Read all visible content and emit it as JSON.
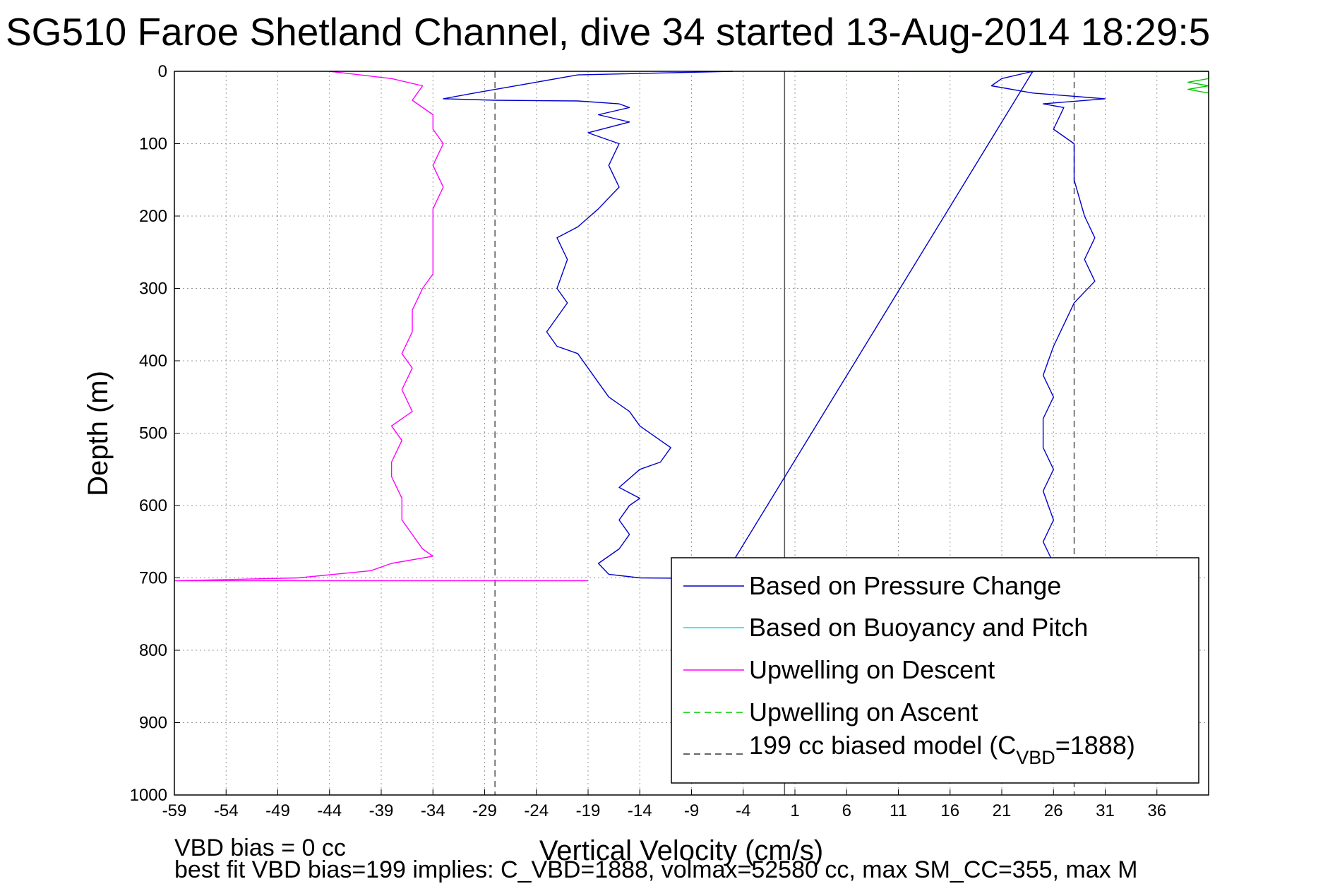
{
  "chart_data": {
    "type": "line",
    "title": "SG510 Faroe Shetland Channel, dive 34 started 13-Aug-2014 18:29:5",
    "xlabel": "Vertical Velocity (cm/s)",
    "ylabel": "Depth (m)",
    "xlim": [
      -59,
      41
    ],
    "ylim": [
      0,
      1000
    ],
    "y_reversed": true,
    "grid": true,
    "xticks": [
      -59,
      -54,
      -49,
      -44,
      -39,
      -34,
      -29,
      -24,
      -19,
      -14,
      -9,
      -4,
      1,
      6,
      11,
      16,
      21,
      26,
      31,
      36
    ],
    "yticks": [
      0,
      100,
      200,
      300,
      400,
      500,
      600,
      700,
      800,
      900,
      1000
    ],
    "legend_position": "bottom-right",
    "footer_lines": [
      "VBD bias = 0 cc",
      "best fit VBD bias=199 implies: C_VBD=1888, volmax=52580 cc, max SM_CC=355, max M"
    ],
    "legend_entries": [
      {
        "label": "Based on Pressure Change",
        "color": "#0000cc",
        "dash": "solid"
      },
      {
        "label": "Based on Buoyancy and Pitch",
        "color": "#00e5e5",
        "dash": "solid"
      },
      {
        "label": "Upwelling on Descent",
        "color": "#ff00ff",
        "dash": "solid"
      },
      {
        "label": "Upwelling on Ascent",
        "color": "#00cc00",
        "dash": "dashed"
      },
      {
        "label_main": "199 cc biased model (C",
        "label_sub": "VBD",
        "label_tail": "=1888)",
        "color": "#333333",
        "dash": "dashed"
      }
    ],
    "series": [
      {
        "name": "Based on Pressure Change",
        "color": "#0000cc",
        "points": [
          [
            -5,
            0
          ],
          [
            -20,
            5
          ],
          [
            -24,
            15
          ],
          [
            -30,
            30
          ],
          [
            -33,
            38
          ],
          [
            -28,
            40
          ],
          [
            -20,
            41
          ],
          [
            -16,
            45
          ],
          [
            -15,
            50
          ],
          [
            -18,
            60
          ],
          [
            -15,
            70
          ],
          [
            -19,
            85
          ],
          [
            -16,
            100
          ],
          [
            -17,
            130
          ],
          [
            -16,
            160
          ],
          [
            -18,
            190
          ],
          [
            -20,
            215
          ],
          [
            -22,
            230
          ],
          [
            -21,
            260
          ],
          [
            -22,
            300
          ],
          [
            -21,
            320
          ],
          [
            -23,
            360
          ],
          [
            -22,
            380
          ],
          [
            -20,
            390
          ],
          [
            -19,
            410
          ],
          [
            -18,
            430
          ],
          [
            -17,
            450
          ],
          [
            -15,
            470
          ],
          [
            -14,
            490
          ],
          [
            -12,
            510
          ],
          [
            -11,
            520
          ],
          [
            -12,
            540
          ],
          [
            -14,
            550
          ],
          [
            -16,
            575
          ],
          [
            -14,
            590
          ],
          [
            -15,
            600
          ],
          [
            -16,
            620
          ],
          [
            -15,
            640
          ],
          [
            -16,
            660
          ],
          [
            -18,
            680
          ],
          [
            -17,
            695
          ],
          [
            -14,
            700
          ],
          [
            -6,
            701
          ],
          [
            24,
            0
          ],
          [
            21,
            10
          ],
          [
            20,
            20
          ],
          [
            24,
            30
          ],
          [
            31,
            38
          ],
          [
            25,
            45
          ],
          [
            27,
            50
          ],
          [
            26,
            80
          ],
          [
            28,
            100
          ],
          [
            28,
            150
          ],
          [
            29,
            200
          ],
          [
            30,
            230
          ],
          [
            29,
            260
          ],
          [
            30,
            290
          ],
          [
            28,
            320
          ],
          [
            27,
            350
          ],
          [
            26,
            380
          ],
          [
            25,
            420
          ],
          [
            26,
            450
          ],
          [
            25,
            480
          ],
          [
            25,
            520
          ],
          [
            26,
            550
          ],
          [
            25,
            580
          ],
          [
            26,
            620
          ],
          [
            25,
            650
          ],
          [
            26,
            680
          ],
          [
            27,
            700
          ]
        ]
      },
      {
        "name": "Upwelling on Descent",
        "color": "#ff00ff",
        "points": [
          [
            -44,
            0
          ],
          [
            -38,
            10
          ],
          [
            -35,
            20
          ],
          [
            -36,
            40
          ],
          [
            -34,
            60
          ],
          [
            -34,
            80
          ],
          [
            -33,
            100
          ],
          [
            -34,
            130
          ],
          [
            -33,
            160
          ],
          [
            -34,
            190
          ],
          [
            -34,
            220
          ],
          [
            -34,
            250
          ],
          [
            -34,
            280
          ],
          [
            -35,
            300
          ],
          [
            -36,
            330
          ],
          [
            -36,
            360
          ],
          [
            -37,
            390
          ],
          [
            -36,
            410
          ],
          [
            -37,
            440
          ],
          [
            -36,
            470
          ],
          [
            -38,
            490
          ],
          [
            -37,
            510
          ],
          [
            -38,
            540
          ],
          [
            -38,
            560
          ],
          [
            -37,
            590
          ],
          [
            -37,
            620
          ],
          [
            -36,
            640
          ],
          [
            -35,
            660
          ],
          [
            -34,
            670
          ],
          [
            -38,
            680
          ],
          [
            -40,
            690
          ],
          [
            -47,
            700
          ],
          [
            -59,
            704
          ],
          [
            -19,
            704
          ]
        ]
      },
      {
        "name": "Upwelling on Ascent",
        "color": "#00cc00",
        "points": [
          [
            1,
            0
          ],
          [
            41,
            0
          ],
          [
            41,
            10
          ],
          [
            39,
            15
          ],
          [
            41,
            20
          ],
          [
            39,
            25
          ],
          [
            41,
            30
          ]
        ]
      }
    ],
    "reference_lines": [
      {
        "name": "zero-line",
        "x": 0,
        "color": "#555555",
        "dash": "solid"
      },
      {
        "name": "biased-model-descent",
        "x": -28,
        "color": "#555555",
        "dash": "dashed"
      },
      {
        "name": "biased-model-ascent",
        "x": 28,
        "color": "#555555",
        "dash": "dashed"
      }
    ]
  }
}
